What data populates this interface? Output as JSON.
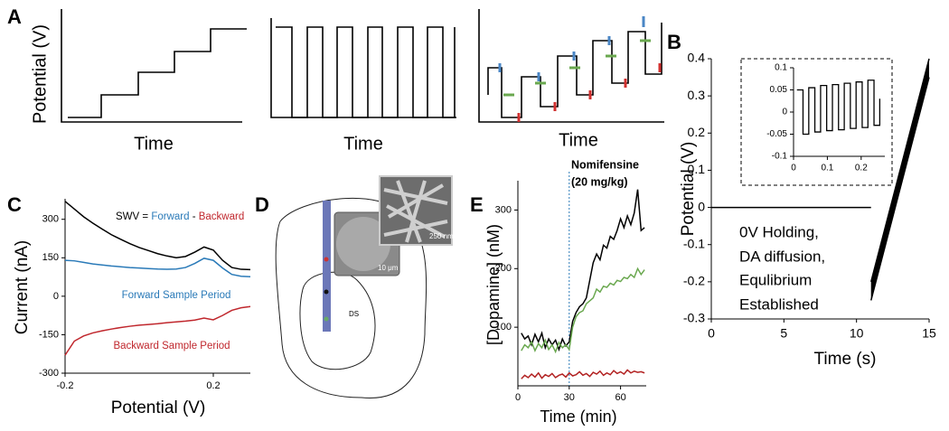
{
  "panel_labels": [
    "A",
    "B",
    "C",
    "D",
    "E"
  ],
  "panel_a": {
    "ylabel": "Potential (V)",
    "xlabels": [
      "Time",
      "Time",
      "Time"
    ]
  },
  "panel_d": {
    "region": "DS",
    "scale_small": "10 μm",
    "scale_large": "250 nm"
  },
  "chart_data": [
    {
      "type": "line",
      "xlabel": "Time (s)",
      "ylabel": "Potential (V)",
      "xlim": [
        0,
        15
      ],
      "ylim": [
        -0.3,
        0.4
      ],
      "xticks": [
        0,
        5,
        10,
        15
      ],
      "yticks": [
        -0.3,
        -0.2,
        -0.1,
        0,
        0.1,
        0.2,
        0.3,
        0.4
      ],
      "band": true,
      "annotations": [
        "0V Holding,",
        "DA diffusion,",
        "Equlibrium",
        "Established"
      ],
      "series": [
        {
          "color": "#000000",
          "x": [
            0,
            11
          ],
          "values": [
            0,
            0
          ]
        },
        {
          "color": "#000000",
          "x": [
            11,
            15
          ],
          "values": [
            -0.2,
            0.4
          ]
        },
        {
          "color": "#000000",
          "x": [
            11,
            15
          ],
          "values": [
            -0.25,
            0.35
          ]
        }
      ]
    },
    {
      "type": "line",
      "inset": true,
      "xlim": [
        0,
        0.27
      ],
      "ylim": [
        -0.1,
        0.1
      ],
      "xticks": [
        0,
        0.1,
        0.2
      ],
      "yticks": [
        -0.1,
        -0.05,
        0,
        0.05,
        0.1
      ],
      "series": [
        {
          "color": "#000000",
          "x": [
            0.01,
            0.028,
            0.028,
            0.045,
            0.045,
            0.063,
            0.063,
            0.08,
            0.08,
            0.098,
            0.098,
            0.115,
            0.115,
            0.133,
            0.133,
            0.15,
            0.15,
            0.168,
            0.168,
            0.185,
            0.185,
            0.203,
            0.203,
            0.22,
            0.22,
            0.238,
            0.238,
            0.255,
            0.255
          ],
          "values": [
            0.05,
            0.05,
            -0.05,
            -0.05,
            0.055,
            0.055,
            -0.045,
            -0.045,
            0.06,
            0.06,
            -0.042,
            -0.042,
            0.062,
            0.062,
            -0.04,
            -0.04,
            0.065,
            0.065,
            -0.037,
            -0.037,
            0.068,
            0.068,
            -0.035,
            -0.035,
            0.072,
            0.072,
            -0.03,
            -0.03,
            0.03
          ]
        }
      ]
    },
    {
      "type": "line",
      "xlabel": "Potential (V)",
      "ylabel": "Current (nA)",
      "xlim": [
        -0.2,
        0.3
      ],
      "ylim": [
        -300,
        380
      ],
      "xticks": [
        -0.2,
        0.2
      ],
      "yticks": [
        -300,
        -150,
        0,
        150,
        300
      ],
      "annotations": [
        {
          "text": "SWV = ",
          "color": "#000000"
        },
        {
          "text": "Forward",
          "color": "#2a7ab8"
        },
        {
          "text": " - ",
          "color": "#000000"
        },
        {
          "text": "Backward",
          "color": "#c0272d"
        },
        {
          "text": "Forward Sample Period",
          "color": "#2a7ab8"
        },
        {
          "text": "Backward Sample Period",
          "color": "#c0272d"
        }
      ],
      "series": [
        {
          "color": "#000000",
          "x": [
            -0.2,
            -0.175,
            -0.15,
            -0.125,
            -0.1,
            -0.075,
            -0.05,
            -0.025,
            0,
            0.025,
            0.05,
            0.075,
            0.1,
            0.125,
            0.15,
            0.175,
            0.2,
            0.225,
            0.25,
            0.275,
            0.3
          ],
          "values": [
            370,
            340,
            310,
            285,
            262,
            240,
            222,
            205,
            190,
            178,
            166,
            157,
            150,
            155,
            172,
            192,
            180,
            140,
            112,
            105,
            104
          ]
        },
        {
          "color": "#2a7ab8",
          "x": [
            -0.2,
            -0.175,
            -0.15,
            -0.125,
            -0.1,
            -0.075,
            -0.05,
            -0.025,
            0,
            0.025,
            0.05,
            0.075,
            0.1,
            0.125,
            0.15,
            0.175,
            0.2,
            0.225,
            0.25,
            0.275,
            0.3
          ],
          "values": [
            140,
            138,
            132,
            126,
            122,
            118,
            115,
            112,
            110,
            108,
            106,
            105,
            106,
            112,
            128,
            148,
            140,
            110,
            85,
            78,
            76
          ]
        },
        {
          "color": "#c0272d",
          "x": [
            -0.2,
            -0.175,
            -0.15,
            -0.125,
            -0.1,
            -0.075,
            -0.05,
            -0.025,
            0,
            0.025,
            0.05,
            0.075,
            0.1,
            0.125,
            0.15,
            0.175,
            0.2,
            0.225,
            0.25,
            0.275,
            0.3
          ],
          "values": [
            -230,
            -175,
            -155,
            -143,
            -135,
            -128,
            -122,
            -117,
            -113,
            -110,
            -107,
            -103,
            -100,
            -97,
            -93,
            -85,
            -92,
            -75,
            -55,
            -45,
            -40
          ]
        }
      ]
    },
    {
      "type": "line",
      "xlabel": "Time (min)",
      "ylabel": "[Dopamine] (nM)",
      "xlim": [
        0,
        75
      ],
      "ylim": [
        0,
        350
      ],
      "xticks": [
        0,
        30,
        60
      ],
      "yticks": [
        100,
        200,
        300
      ],
      "vline": 30,
      "vline_color": "#2a7ab8",
      "annotations": [
        "Nomifensine",
        "(20 mg/kg)"
      ],
      "series": [
        {
          "color": "#000000",
          "x": [
            2,
            4,
            6,
            8,
            10,
            12,
            14,
            16,
            18,
            20,
            22,
            24,
            26,
            28,
            30,
            32,
            34,
            36,
            38,
            40,
            42,
            44,
            46,
            48,
            50,
            52,
            54,
            56,
            58,
            60,
            62,
            64,
            66,
            68,
            70,
            72,
            74
          ],
          "values": [
            90,
            80,
            85,
            70,
            88,
            75,
            90,
            65,
            80,
            70,
            78,
            62,
            80,
            68,
            75,
            110,
            125,
            135,
            140,
            150,
            180,
            210,
            225,
            215,
            240,
            235,
            255,
            250,
            265,
            285,
            270,
            290,
            275,
            295,
            335,
            265,
            270
          ]
        },
        {
          "color": "#6aa84f",
          "x": [
            2,
            4,
            6,
            8,
            10,
            12,
            14,
            16,
            18,
            20,
            22,
            24,
            26,
            28,
            30,
            32,
            34,
            36,
            38,
            40,
            42,
            44,
            46,
            48,
            50,
            52,
            54,
            56,
            58,
            60,
            62,
            64,
            66,
            68,
            70,
            72,
            74
          ],
          "values": [
            60,
            70,
            65,
            75,
            60,
            72,
            65,
            78,
            62,
            70,
            58,
            74,
            65,
            70,
            62,
            100,
            118,
            125,
            128,
            140,
            145,
            150,
            165,
            160,
            170,
            168,
            175,
            172,
            180,
            178,
            185,
            183,
            190,
            185,
            200,
            190,
            198
          ]
        },
        {
          "color": "#b22222",
          "x": [
            2,
            4,
            6,
            8,
            10,
            12,
            14,
            16,
            18,
            20,
            22,
            24,
            26,
            28,
            30,
            32,
            34,
            36,
            38,
            40,
            42,
            44,
            46,
            48,
            50,
            52,
            54,
            56,
            58,
            60,
            62,
            64,
            66,
            68,
            70,
            72,
            74
          ],
          "values": [
            12,
            18,
            14,
            20,
            15,
            22,
            13,
            19,
            16,
            21,
            14,
            18,
            20,
            15,
            22,
            17,
            19,
            24,
            18,
            21,
            16,
            23,
            20,
            25,
            18,
            22,
            19,
            26,
            21,
            24,
            20,
            27,
            22,
            25,
            23,
            24,
            22
          ]
        }
      ]
    }
  ]
}
